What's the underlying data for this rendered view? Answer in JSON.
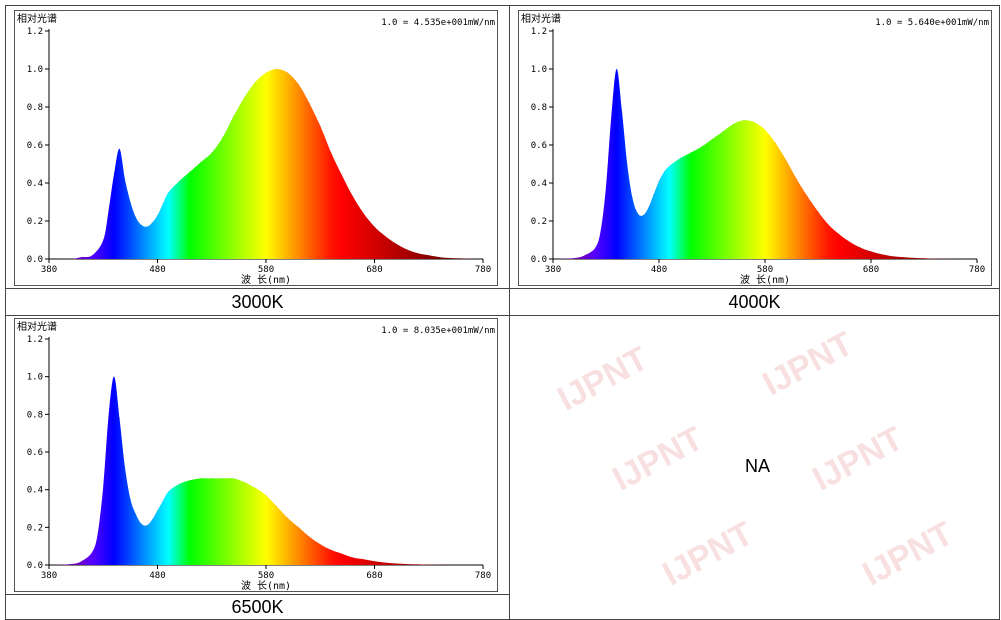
{
  "watermark": "IJPNT",
  "na_text": "NA",
  "chart_data": [
    {
      "type": "area",
      "caption": "3000K",
      "title": "相对光谱",
      "scale_note": "1.0 = 4.535e+001mW/nm",
      "xlabel": "波 长(nm)",
      "xlim": [
        380,
        780
      ],
      "ylim": [
        0,
        1.2
      ],
      "x_ticks": [
        380,
        480,
        580,
        680,
        780
      ],
      "y_ticks": [
        0.0,
        0.2,
        0.4,
        0.6,
        0.8,
        1.0,
        1.2
      ],
      "x": [
        380,
        400,
        410,
        420,
        430,
        435,
        440,
        445,
        450,
        455,
        460,
        465,
        470,
        475,
        480,
        485,
        490,
        500,
        510,
        520,
        530,
        540,
        550,
        560,
        570,
        580,
        590,
        600,
        610,
        620,
        630,
        640,
        650,
        660,
        670,
        680,
        690,
        700,
        710,
        720,
        730,
        740,
        750,
        760,
        770,
        780
      ],
      "values": [
        0.0,
        0.0,
        0.01,
        0.02,
        0.1,
        0.26,
        0.45,
        0.58,
        0.42,
        0.3,
        0.22,
        0.18,
        0.17,
        0.19,
        0.23,
        0.29,
        0.35,
        0.41,
        0.46,
        0.51,
        0.56,
        0.64,
        0.75,
        0.85,
        0.93,
        0.98,
        1.0,
        0.98,
        0.92,
        0.82,
        0.7,
        0.56,
        0.44,
        0.33,
        0.24,
        0.17,
        0.12,
        0.08,
        0.05,
        0.03,
        0.02,
        0.01,
        0.005,
        0.003,
        0.001,
        0.0
      ]
    },
    {
      "type": "area",
      "caption": "4000K",
      "title": "相对光谱",
      "scale_note": "1.0 = 5.640e+001mW/nm",
      "xlabel": "波 长(nm)",
      "xlim": [
        380,
        780
      ],
      "ylim": [
        0,
        1.2
      ],
      "x_ticks": [
        380,
        480,
        580,
        680,
        780
      ],
      "y_ticks": [
        0.0,
        0.2,
        0.4,
        0.6,
        0.8,
        1.0,
        1.2
      ],
      "x": [
        380,
        400,
        410,
        420,
        425,
        430,
        435,
        440,
        445,
        450,
        455,
        460,
        465,
        470,
        475,
        480,
        485,
        490,
        500,
        510,
        520,
        530,
        540,
        550,
        560,
        570,
        580,
        590,
        600,
        610,
        620,
        630,
        640,
        650,
        660,
        670,
        680,
        690,
        700,
        710,
        720,
        730,
        740,
        750,
        760,
        770,
        780
      ],
      "values": [
        0.0,
        0.005,
        0.02,
        0.06,
        0.15,
        0.38,
        0.75,
        1.0,
        0.78,
        0.5,
        0.32,
        0.24,
        0.23,
        0.27,
        0.34,
        0.41,
        0.46,
        0.49,
        0.53,
        0.56,
        0.59,
        0.63,
        0.67,
        0.71,
        0.73,
        0.72,
        0.68,
        0.61,
        0.52,
        0.42,
        0.33,
        0.25,
        0.18,
        0.13,
        0.09,
        0.06,
        0.04,
        0.025,
        0.015,
        0.01,
        0.006,
        0.004,
        0.002,
        0.001,
        0.0005,
        0.0002,
        0.0
      ]
    },
    {
      "type": "area",
      "caption": "6500K",
      "title": "相对光谱",
      "scale_note": "1.0 = 8.035e+001mW/nm",
      "xlabel": "波 长(nm)",
      "xlim": [
        380,
        780
      ],
      "ylim": [
        0,
        1.2
      ],
      "x_ticks": [
        380,
        480,
        580,
        680,
        780
      ],
      "y_ticks": [
        0.0,
        0.2,
        0.4,
        0.6,
        0.8,
        1.0,
        1.2
      ],
      "x": [
        380,
        400,
        410,
        420,
        425,
        430,
        435,
        440,
        445,
        450,
        455,
        460,
        465,
        470,
        475,
        480,
        485,
        490,
        500,
        510,
        520,
        530,
        540,
        550,
        560,
        570,
        580,
        590,
        600,
        610,
        620,
        630,
        640,
        650,
        660,
        670,
        680,
        690,
        700,
        710,
        720,
        730,
        740,
        750,
        760,
        770,
        780
      ],
      "values": [
        0.0,
        0.005,
        0.02,
        0.07,
        0.17,
        0.42,
        0.8,
        1.0,
        0.78,
        0.52,
        0.35,
        0.27,
        0.22,
        0.21,
        0.24,
        0.29,
        0.34,
        0.39,
        0.43,
        0.45,
        0.46,
        0.46,
        0.46,
        0.46,
        0.44,
        0.41,
        0.37,
        0.31,
        0.25,
        0.2,
        0.15,
        0.11,
        0.08,
        0.06,
        0.04,
        0.03,
        0.02,
        0.013,
        0.008,
        0.005,
        0.003,
        0.002,
        0.001,
        0.0007,
        0.0004,
        0.0002,
        0.0
      ]
    }
  ]
}
